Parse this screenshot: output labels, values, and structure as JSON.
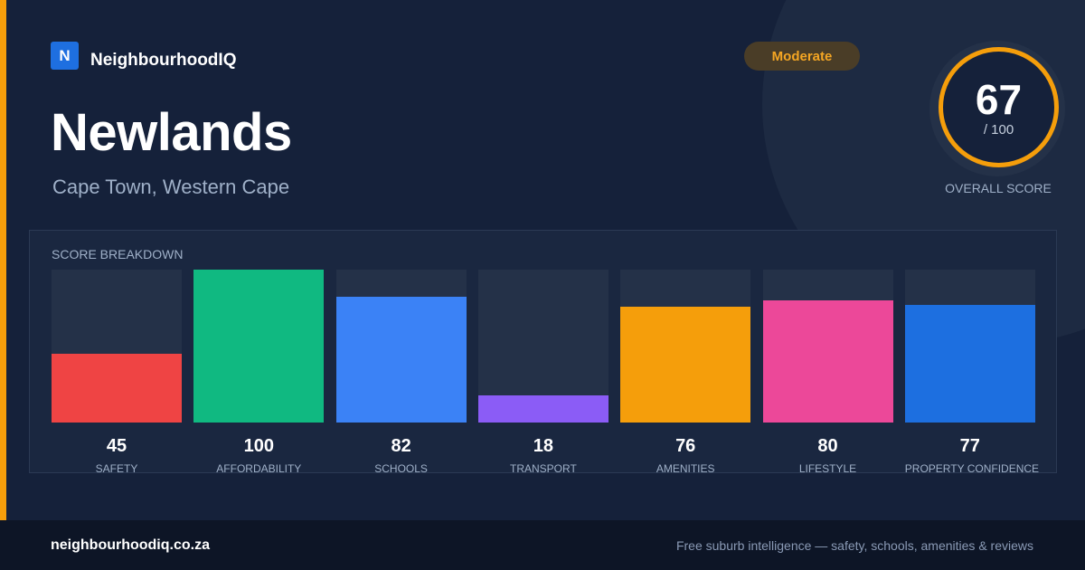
{
  "brand": {
    "logo_letter": "N",
    "name": "NeighbourhoodIQ"
  },
  "suburb": {
    "name": "Newlands",
    "location": "Cape Town, Western Cape"
  },
  "rating": {
    "badge": "Moderate",
    "badge_color": "#f5a623"
  },
  "overall": {
    "score": "67",
    "out_of": "/ 100",
    "label": "OVERALL SCORE",
    "ring_color": "#f59e0b"
  },
  "breakdown": {
    "title": "SCORE BREAKDOWN",
    "max": 100,
    "items": [
      {
        "label": "SAFETY",
        "value": 45,
        "color": "#ef4444"
      },
      {
        "label": "AFFORDABILITY",
        "value": 100,
        "color": "#10b981"
      },
      {
        "label": "SCHOOLS",
        "value": 82,
        "color": "#3b82f6"
      },
      {
        "label": "TRANSPORT",
        "value": 18,
        "color": "#8b5cf6"
      },
      {
        "label": "AMENITIES",
        "value": 76,
        "color": "#f59e0b"
      },
      {
        "label": "LIFESTYLE",
        "value": 80,
        "color": "#ec4899"
      },
      {
        "label": "PROPERTY CONFIDENCE",
        "value": 77,
        "color": "#1d6fe0"
      }
    ]
  },
  "footer": {
    "url": "neighbourhoodiq.co.za",
    "tagline": "Free suburb intelligence — safety, schools, amenities & reviews"
  }
}
